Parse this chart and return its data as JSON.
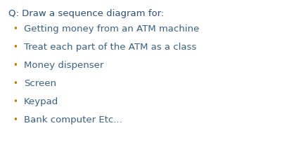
{
  "background_color": "#ffffff",
  "title": "Q: Draw a sequence diagram for:",
  "title_color": "#2e4f72",
  "title_fontsize": 9.5,
  "bullet_color": "#c47c00",
  "text_color": "#3a6080",
  "text_fontsize": 9.5,
  "bullet_char": "•",
  "items": [
    "Getting money from an ATM machine",
    "Treat each part of the ATM as a class",
    "Money dispenser",
    "Screen",
    "Keypad",
    "Bank computer Etc..."
  ]
}
